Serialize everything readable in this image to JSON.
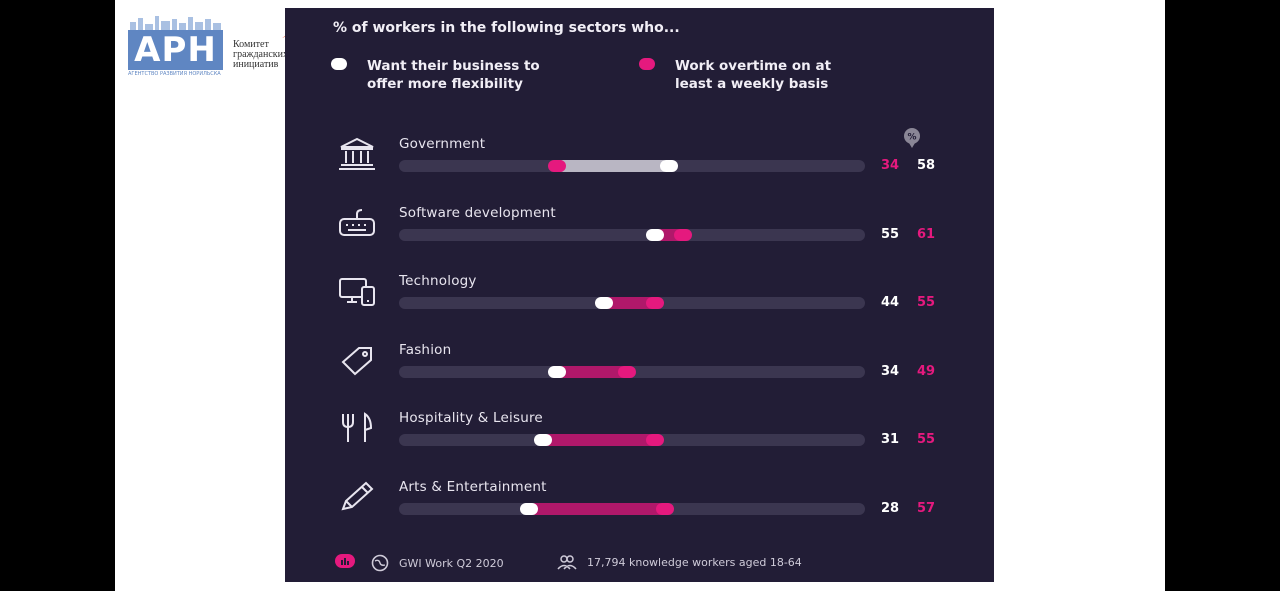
{
  "logos": {
    "arn_text": "АРН",
    "arn_sub": "АГЕНТСТВО РАЗВИТИЯ НОРИЛЬСКА",
    "kgi_lines": [
      "Комитет",
      "гражданских",
      "инициатив"
    ]
  },
  "chart_data": {
    "type": "dumbbell",
    "title": "% of workers in the following sectors who...",
    "legend": [
      {
        "label_line1": "Want their business to",
        "label_line2": "offer more flexibility",
        "color": "#ffffff"
      },
      {
        "label_line1": "Work overtime on at",
        "label_line2": "least a weekly basis",
        "color": "#e5197e"
      }
    ],
    "value_header": "%",
    "xlim": [
      0,
      100
    ],
    "categories": [
      "Government",
      "Software development",
      "Technology",
      "Fashion",
      "Hospitality & Leisure",
      "Arts & Entertainment"
    ],
    "icons": [
      "government-building-icon",
      "keyboard-icon",
      "devices-icon",
      "price-tag-icon",
      "cutlery-icon",
      "pencil-icon"
    ],
    "series": [
      {
        "name": "Want their business to offer more flexibility",
        "values": [
          58,
          55,
          44,
          34,
          31,
          28
        ]
      },
      {
        "name": "Work overtime on at least a weekly basis",
        "values": [
          34,
          61,
          55,
          49,
          55,
          57
        ]
      }
    ],
    "labels": [
      {
        "first": "34",
        "second": "58"
      },
      {
        "first": "55",
        "second": "61"
      },
      {
        "first": "44",
        "second": "55"
      },
      {
        "first": "34",
        "second": "49"
      },
      {
        "first": "31",
        "second": "55"
      },
      {
        "first": "28",
        "second": "57"
      }
    ],
    "colors": {
      "flex": "#ffffff",
      "overtime": "#e5197e",
      "track": "#3b3650",
      "bg": "#221d36",
      "range_light": "#b9b6c3",
      "range_pink": "#b0186a"
    }
  },
  "footer": {
    "source": "GWI Work Q2 2020",
    "sample": "17,794 knowledge workers aged 18-64"
  }
}
